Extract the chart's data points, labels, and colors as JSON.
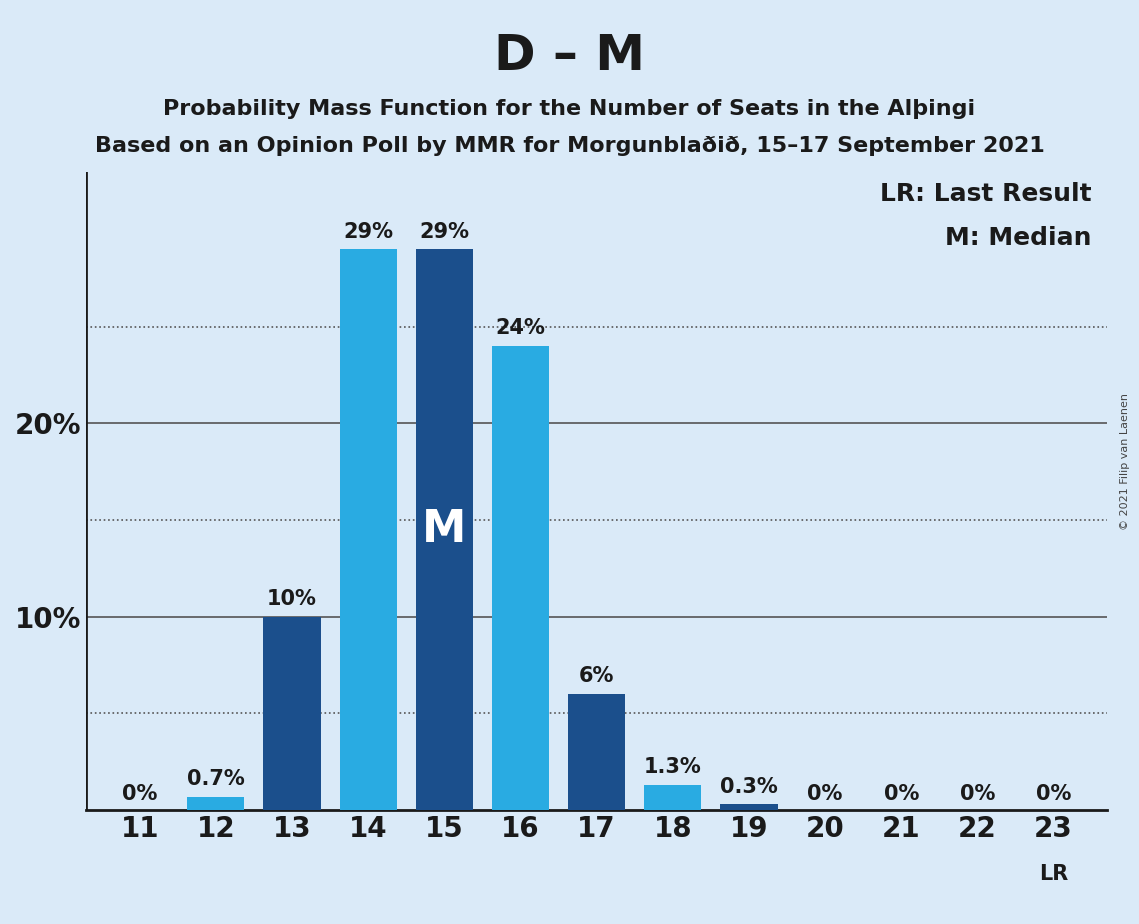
{
  "title": "D – M",
  "subtitle1": "Probability Mass Function for the Number of Seats in the Alþingi",
  "subtitle2": "Based on an Opinion Poll by MMR for Morgunblaðið, 15–17 September 2021",
  "copyright": "© 2021 Filip van Laenen",
  "seats": [
    11,
    12,
    13,
    14,
    15,
    16,
    17,
    18,
    19,
    20,
    21,
    22,
    23
  ],
  "values": [
    0.0,
    0.7,
    10.0,
    29.0,
    29.0,
    24.0,
    6.0,
    1.3,
    0.3,
    0.0,
    0.0,
    0.0,
    0.0
  ],
  "bar_colors": [
    "#1B4F8C",
    "#29ABE2",
    "#1B4F8C",
    "#29ABE2",
    "#1B4F8C",
    "#29ABE2",
    "#1B4F8C",
    "#29ABE2",
    "#1B4F8C",
    "#1B4F8C",
    "#1B4F8C",
    "#1B4F8C",
    "#1B4F8C"
  ],
  "median_seat": 15,
  "bar_labels": [
    "0%",
    "0.7%",
    "10%",
    "29%",
    "29%",
    "24%",
    "6%",
    "1.3%",
    "0.3%",
    "0%",
    "0%",
    "0%",
    "0%"
  ],
  "legend_text1": "LR: Last Result",
  "legend_text2": "M: Median",
  "bg_color": "#DAEAF8",
  "ymax": 33,
  "grid_ticks_dotted": [
    5,
    15,
    25
  ],
  "grid_ticks_solid": [
    10,
    20
  ],
  "title_fontsize": 36,
  "subtitle_fontsize": 16,
  "tick_fontsize": 20,
  "label_fontsize": 15,
  "legend_fontsize": 18,
  "m_fontsize": 32,
  "copyright_fontsize": 8
}
